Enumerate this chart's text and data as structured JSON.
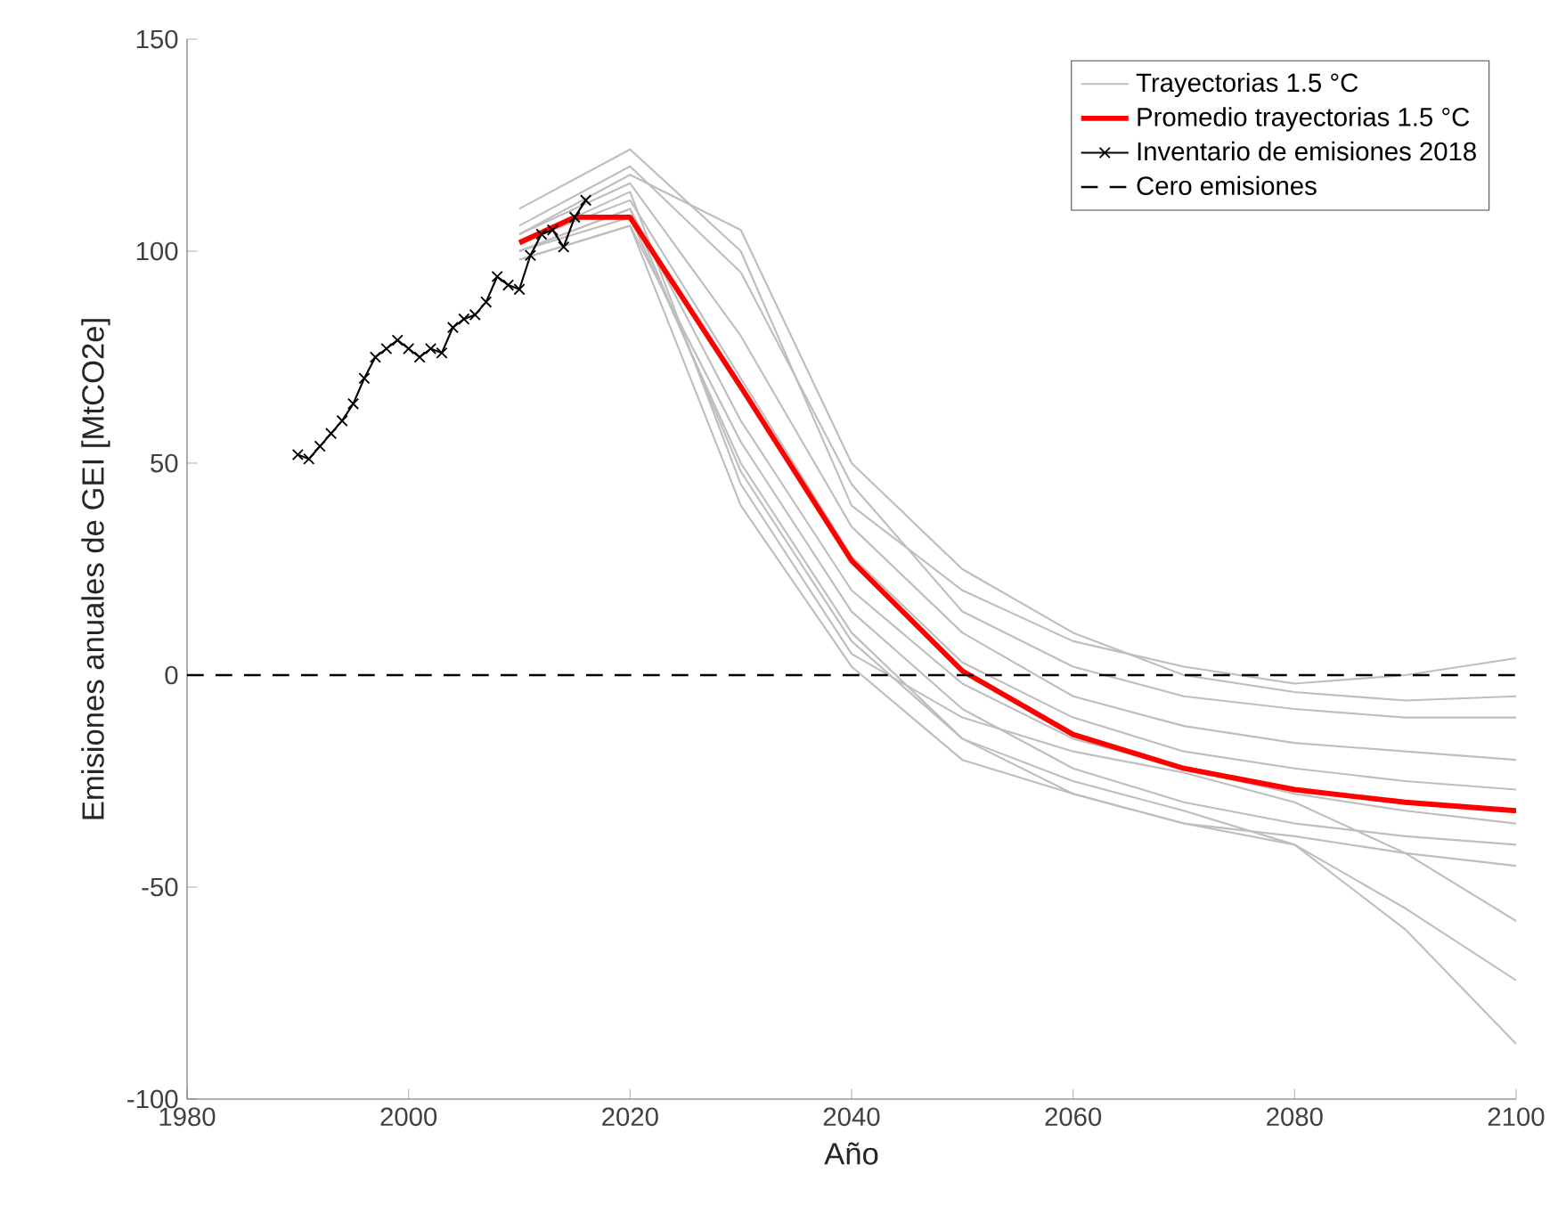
{
  "chart_data": {
    "type": "line",
    "xlabel": "Año",
    "ylabel": "Emisiones anuales de GEI [MtCO2e]",
    "xlim": [
      1980,
      2100
    ],
    "xticks": [
      1980,
      2000,
      2020,
      2040,
      2060,
      2080,
      2100
    ],
    "ylim": [
      -100,
      150
    ],
    "yticks": [
      -100,
      -50,
      0,
      50,
      100,
      150
    ],
    "grid": false,
    "legend": "top right",
    "series": [
      {
        "name": "Trayectorias 1.5 °C",
        "color": "#bebebe",
        "x": [
          2010,
          2020,
          2030,
          2040,
          2050,
          2060,
          2070,
          2080,
          2090,
          2100
        ],
        "values": [
          110,
          124,
          100,
          40,
          20,
          8,
          2,
          -2,
          0,
          4
        ]
      },
      {
        "color": "#bebebe",
        "x": [
          2010,
          2020,
          2030,
          2040,
          2050,
          2060,
          2070,
          2080,
          2090,
          2100
        ],
        "values": [
          106,
          120,
          95,
          45,
          15,
          2,
          -5,
          -8,
          -10,
          -10
        ]
      },
      {
        "color": "#bebebe",
        "x": [
          2010,
          2020,
          2030,
          2040,
          2050,
          2060,
          2070,
          2080,
          2090,
          2100
        ],
        "values": [
          104,
          116,
          80,
          35,
          10,
          -5,
          -12,
          -16,
          -18,
          -20
        ]
      },
      {
        "color": "#bebebe",
        "x": [
          2010,
          2020,
          2030,
          2040,
          2050,
          2060,
          2070,
          2080,
          2090,
          2100
        ],
        "values": [
          102,
          112,
          70,
          28,
          3,
          -10,
          -18,
          -22,
          -25,
          -27
        ]
      },
      {
        "color": "#bebebe",
        "x": [
          2010,
          2020,
          2030,
          2040,
          2050,
          2060,
          2070,
          2080,
          2090,
          2100
        ],
        "values": [
          100,
          110,
          60,
          20,
          -2,
          -15,
          -22,
          -28,
          -32,
          -35
        ]
      },
      {
        "color": "#bebebe",
        "x": [
          2010,
          2020,
          2030,
          2040,
          2050,
          2060,
          2070,
          2080,
          2090,
          2100
        ],
        "values": [
          98,
          106,
          55,
          15,
          -8,
          -22,
          -30,
          -35,
          -38,
          -40
        ]
      },
      {
        "color": "#bebebe",
        "x": [
          2010,
          2020,
          2030,
          2040,
          2050,
          2060,
          2070,
          2080,
          2090,
          2100
        ],
        "values": [
          100,
          108,
          50,
          10,
          -15,
          -28,
          -35,
          -38,
          -42,
          -45
        ]
      },
      {
        "color": "#bebebe",
        "x": [
          2010,
          2020,
          2030,
          2040,
          2050,
          2060,
          2070,
          2080,
          2090,
          2100
        ],
        "values": [
          102,
          114,
          45,
          5,
          -10,
          -18,
          -23,
          -30,
          -42,
          -58
        ]
      },
      {
        "color": "#bebebe",
        "x": [
          2010,
          2020,
          2030,
          2040,
          2050,
          2060,
          2070,
          2080,
          2090,
          2100
        ],
        "values": [
          100,
          110,
          48,
          8,
          -15,
          -25,
          -32,
          -40,
          -55,
          -72
        ]
      },
      {
        "color": "#bebebe",
        "x": [
          2010,
          2020,
          2030,
          2040,
          2050,
          2060,
          2070,
          2080,
          2090,
          2100
        ],
        "values": [
          98,
          106,
          40,
          2,
          -20,
          -28,
          -35,
          -40,
          -60,
          -87
        ]
      },
      {
        "color": "#bebebe",
        "x": [
          2010,
          2020,
          2030,
          2040,
          2050,
          2060,
          2070,
          2080,
          2090,
          2100
        ],
        "values": [
          104,
          118,
          105,
          50,
          25,
          10,
          0,
          -4,
          -6,
          -5
        ]
      },
      {
        "name": "Promedio trayectorias 1.5 °C",
        "color": "#ff0000",
        "x": [
          2010,
          2015,
          2020,
          2030,
          2040,
          2050,
          2060,
          2070,
          2080,
          2090,
          2100
        ],
        "values": [
          102,
          108,
          108,
          68,
          27,
          1,
          -14,
          -22,
          -27,
          -30,
          -32
        ]
      },
      {
        "name": "Inventario de emisiones 2018",
        "color": "#000000",
        "marker": "cross",
        "x": [
          1990,
          1991,
          1992,
          1993,
          1994,
          1995,
          1996,
          1997,
          1998,
          1999,
          2000,
          2001,
          2002,
          2003,
          2004,
          2005,
          2006,
          2007,
          2008,
          2009,
          2010,
          2011,
          2012,
          2013,
          2014,
          2015,
          2016
        ],
        "values": [
          52,
          51,
          54,
          57,
          60,
          64,
          70,
          75,
          77,
          79,
          77,
          75,
          77,
          76,
          82,
          84,
          85,
          88,
          94,
          92,
          91,
          99,
          104,
          105,
          101,
          108,
          112
        ]
      }
    ],
    "ref_lines": [
      {
        "axis": "y",
        "value": 0,
        "label": "Cero emisiones",
        "color": "#000000",
        "line_style": "dashed"
      }
    ]
  }
}
